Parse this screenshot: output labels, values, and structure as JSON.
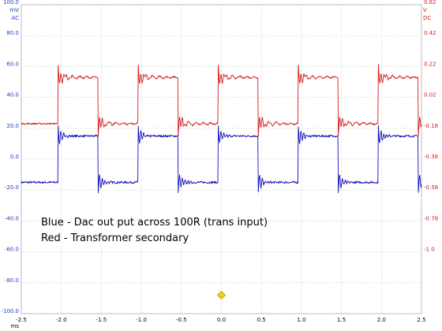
{
  "chart_data": {
    "type": "line",
    "xlabel": "ms",
    "x_ticks": [
      "-2.5",
      "-2.0",
      "-1.5",
      "-1.0",
      "-0.5",
      "0.0",
      "0.5",
      "1.0",
      "1.5",
      "2.0",
      "2.5"
    ],
    "xlim": [
      -2.5,
      2.5
    ],
    "left_axis": {
      "unit_lines": [
        "mV",
        "AC"
      ],
      "ylim": [
        -100,
        100
      ],
      "ticks": [
        "100.0",
        "80.0",
        "60.0",
        "40.0",
        "20.0",
        "0.0",
        "-20.0",
        "-40.0",
        "-60.0",
        "-80.0",
        "-100.0"
      ],
      "color": "#1f3fbf"
    },
    "right_axis": {
      "unit_lines": [
        "V",
        "DC"
      ],
      "ticks": [
        "0.62",
        "0.42",
        "0.22",
        "0.02",
        "-0.18",
        "-0.38",
        "-0.58",
        "-0.78",
        "-1.0"
      ],
      "color": "#d42020"
    },
    "grid": true,
    "series": [
      {
        "axis": "left",
        "color": "#1010b8",
        "rising_edges_ms": [
          -2.04,
          -1.04,
          -0.04,
          0.96,
          1.96
        ],
        "falling_edges_ms": [
          -1.54,
          -0.54,
          0.46,
          1.46,
          2.46
        ],
        "high_mV": 15,
        "low_mV": -15
      },
      {
        "axis": "right",
        "color": "#d41a1a",
        "rising_edges_ms": [
          -2.04,
          -1.04,
          -0.04,
          0.96,
          1.96
        ],
        "falling_edges_ms": [
          -1.54,
          -0.54,
          0.46,
          1.46,
          2.46
        ],
        "high_mV": 53,
        "low_mV": 23
      }
    ],
    "marker": {
      "x": 0.0,
      "y": -88,
      "color": "#f4d010"
    },
    "annotations": [
      "Blue - Dac out put across 100R (trans input)",
      "Red - Transformer secondary"
    ]
  }
}
